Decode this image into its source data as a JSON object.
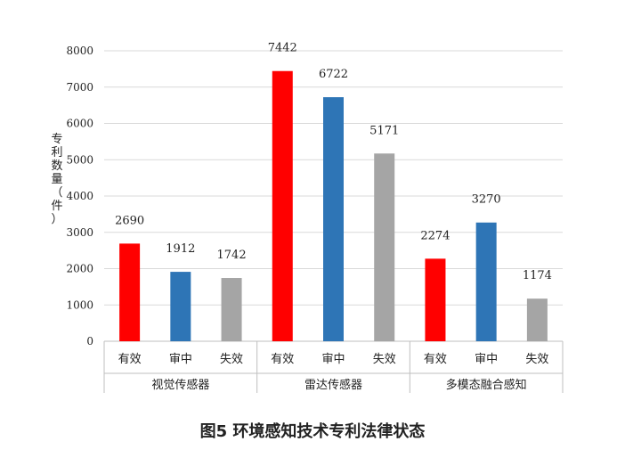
{
  "figure_caption": "图5  环境感知技术专利法律状态",
  "chart_data": {
    "type": "bar",
    "ylabel": "专利数量（件）",
    "ylim": [
      0,
      8000
    ],
    "yticks": [
      0,
      1000,
      2000,
      3000,
      4000,
      5000,
      6000,
      7000,
      8000
    ],
    "grid": true,
    "groups": [
      "视觉传感器",
      "雷达传感器",
      "多模态融合感知"
    ],
    "categories": [
      "有效",
      "审中",
      "失效"
    ],
    "series_colors": [
      "#ff0000",
      "#2e75b6",
      "#a5a5a5"
    ],
    "values": [
      [
        2690,
        1912,
        1742
      ],
      [
        7442,
        6722,
        5171
      ],
      [
        2274,
        3270,
        1174
      ]
    ]
  }
}
